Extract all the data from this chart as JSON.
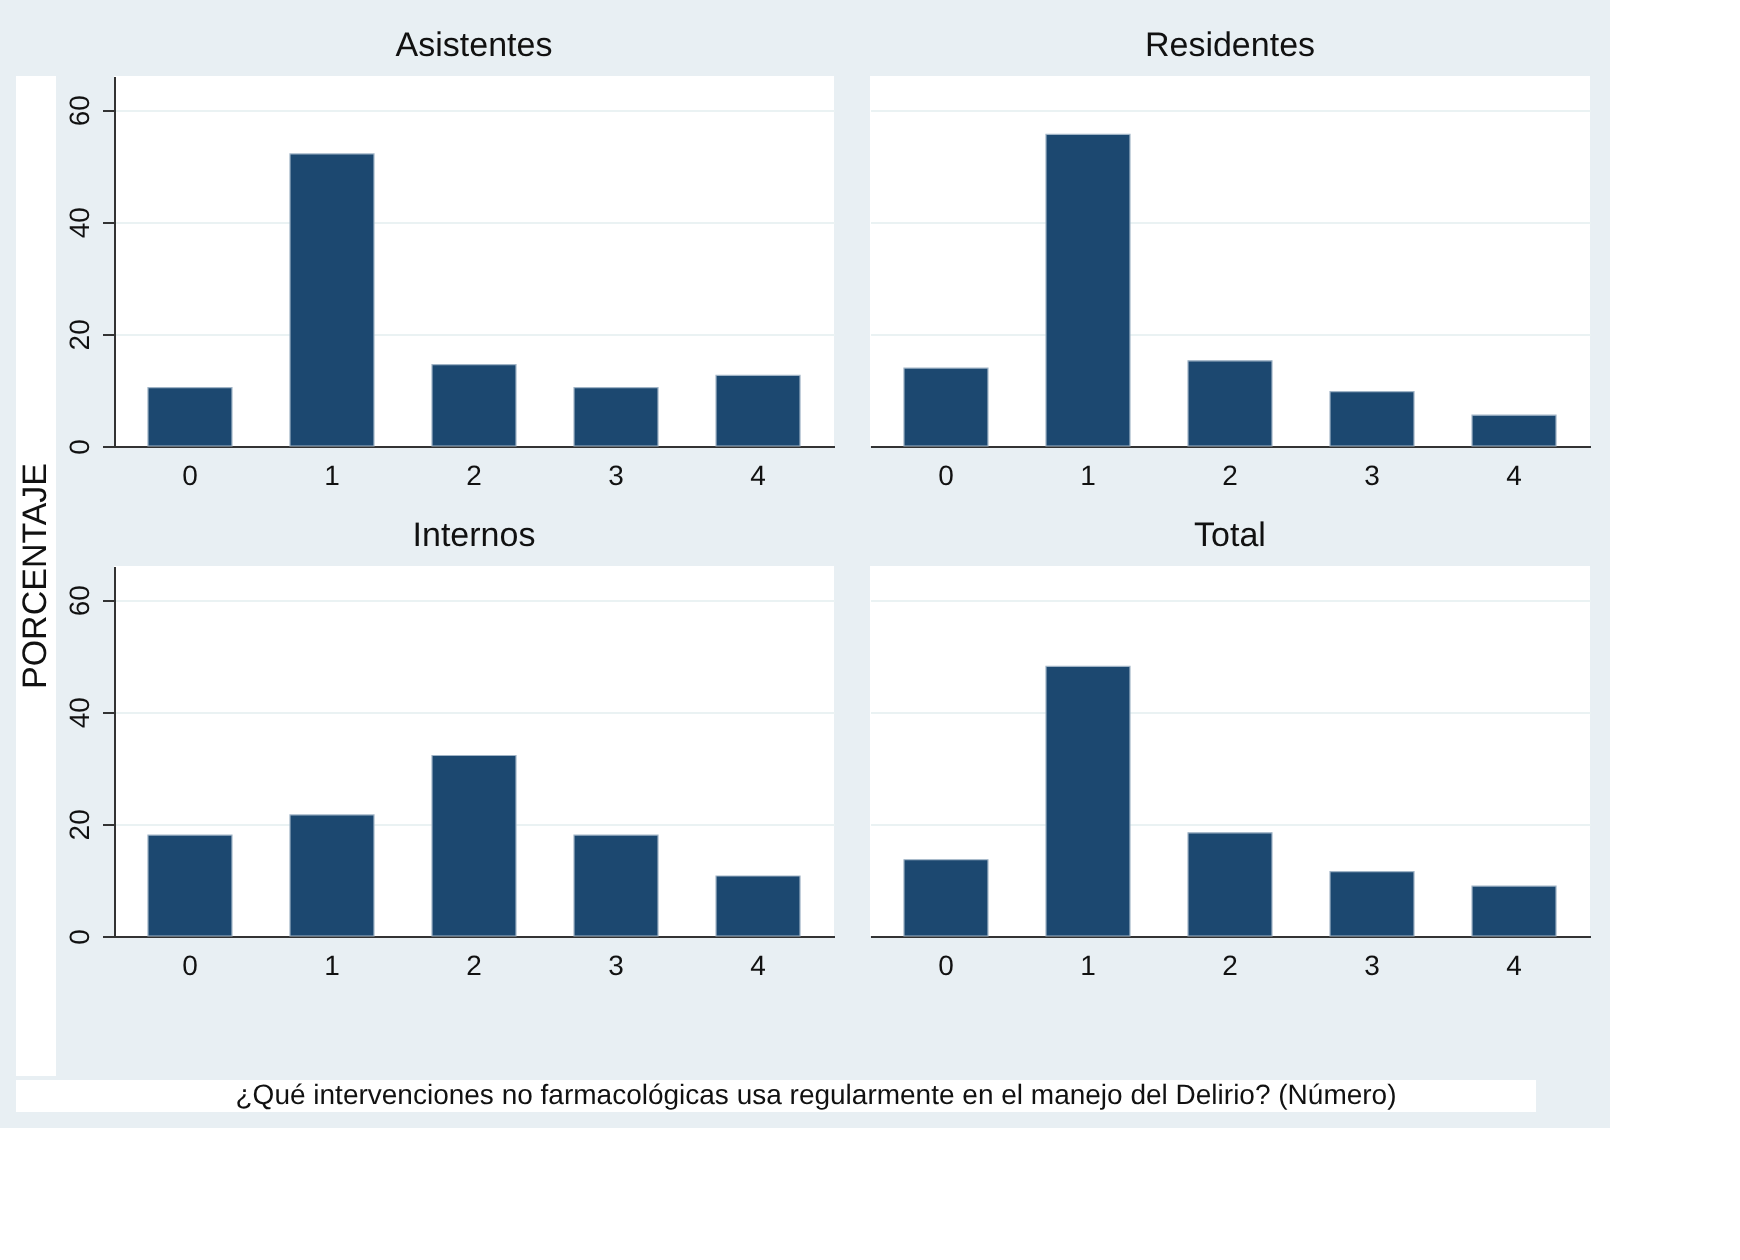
{
  "chart_data": [
    {
      "type": "bar",
      "title": "Asistentes",
      "ylabel": "PORCENTAJE",
      "categories": [
        "0",
        "1",
        "2",
        "3",
        "4"
      ],
      "values": [
        10.4,
        52.1,
        14.5,
        10.4,
        12.6
      ],
      "color": "#1c4870",
      "ylim": [
        0,
        66
      ],
      "yticks": [
        0,
        20,
        40,
        60
      ],
      "grid": "y"
    },
    {
      "type": "bar",
      "title": "Residentes",
      "categories": [
        "0",
        "1",
        "2",
        "3",
        "4"
      ],
      "values": [
        13.9,
        55.6,
        15.2,
        9.7,
        5.5
      ],
      "color": "#1c4870",
      "ylim": [
        0,
        66
      ],
      "yticks": [
        0,
        20,
        40,
        60
      ],
      "grid": "y",
      "tick_labels": "x"
    },
    {
      "type": "bar",
      "title": "Internos",
      "categories": [
        "0",
        "1",
        "2",
        "3",
        "4"
      ],
      "values": [
        18.0,
        21.6,
        32.2,
        18.0,
        10.7
      ],
      "color": "#1c4870",
      "ylim": [
        0,
        66
      ],
      "yticks": [
        0,
        20,
        40,
        60
      ],
      "grid": "y"
    },
    {
      "type": "bar",
      "title": "Total",
      "xlabel": "¿Qué intervenciones no farmacológicas usa regularmente en el manejo del Delirio? (Número)",
      "categories": [
        "0",
        "1",
        "2",
        "3",
        "4"
      ],
      "values": [
        13.6,
        48.1,
        18.4,
        11.5,
        8.9
      ],
      "color": "#1c4870",
      "ylim": [
        0,
        66
      ],
      "yticks": [
        0,
        20,
        40,
        60
      ],
      "grid": "y",
      "tick_labels": "x"
    }
  ]
}
